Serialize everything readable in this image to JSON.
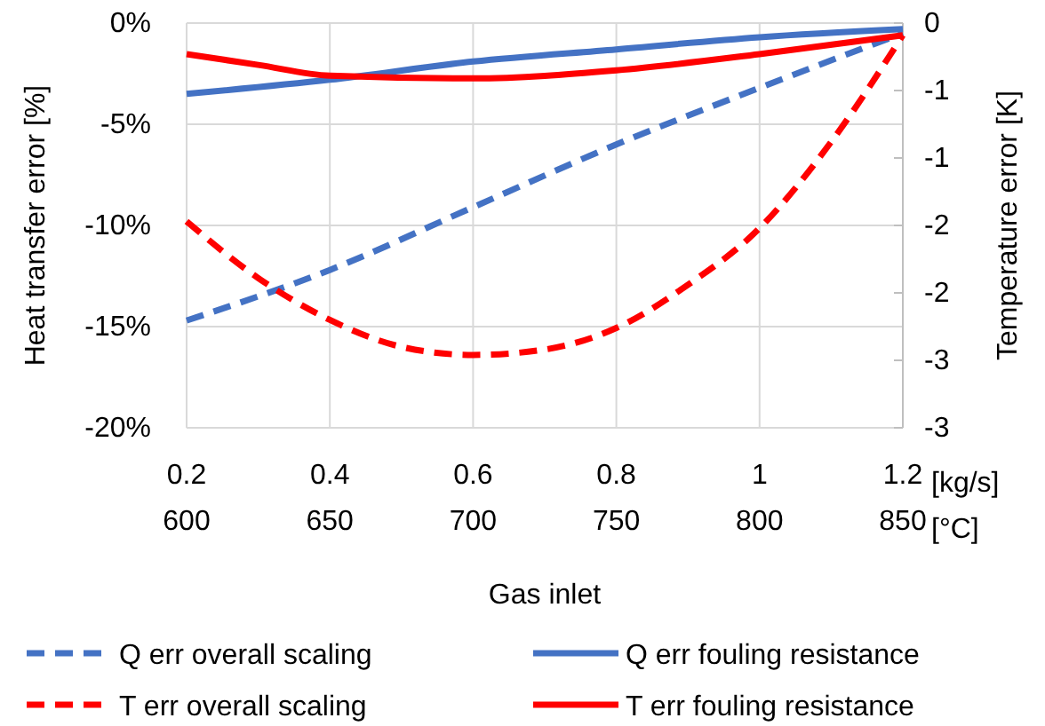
{
  "chart_data": {
    "type": "line",
    "xlabel": "Gas inlet",
    "ylabel": "Heat transfer error [%]",
    "y2label": "Temperature  error [K]",
    "annotations": [
      "[kg/s]",
      "[°C]"
    ],
    "xlim": [
      0.2,
      1.2
    ],
    "xticks": [
      0.2,
      0.4,
      0.6,
      0.8,
      1,
      1.2
    ],
    "x2lim": [
      600,
      850
    ],
    "x2ticks": [
      600,
      650,
      700,
      750,
      800,
      850
    ],
    "ylim": [
      -20,
      0
    ],
    "yticks": [
      {
        "value": 0,
        "label": "0%"
      },
      {
        "value": -5,
        "label": "-5%"
      },
      {
        "value": -10,
        "label": "-10%"
      },
      {
        "value": -15,
        "label": "-15%"
      },
      {
        "value": -20,
        "label": "-20%"
      }
    ],
    "y2lim": [
      -3,
      0
    ],
    "y2ticks": [
      0,
      {
        "value": -0.5,
        "label": "-1"
      },
      -1,
      {
        "value": -1.5,
        "label": "-2"
      },
      -2,
      {
        "value": -2.5,
        "label": "-3"
      },
      -3
    ],
    "grid": true,
    "legend": "bottom",
    "marker": "none",
    "series": [
      {
        "name": "Q err overall scaling",
        "color": "#4472c4",
        "line_style": "dashed",
        "x": [
          0.2,
          0.4,
          0.6,
          0.8,
          1.0,
          1.2
        ],
        "values": [
          -14.7,
          -12.2,
          -9.1,
          -6.0,
          -3.2,
          -0.5
        ]
      },
      {
        "name": "Q err fouling resistance",
        "color": "#4472c4",
        "line_style": "solid",
        "x": [
          0.2,
          0.4,
          0.6,
          0.8,
          1.0,
          1.2
        ],
        "values": [
          -3.5,
          -2.8,
          -1.9,
          -1.3,
          -0.7,
          -0.3
        ]
      },
      {
        "name": "T err overall scaling",
        "color": "#ff0000",
        "line_style": "dashed",
        "axis": "y2",
        "x": [
          0.2,
          0.3,
          0.4,
          0.5,
          0.6,
          0.7,
          0.8,
          0.9,
          1.0,
          1.1,
          1.2
        ],
        "values": [
          -1.47,
          -1.89,
          -2.2,
          -2.4,
          -2.46,
          -2.42,
          -2.26,
          -1.94,
          -1.52,
          -0.88,
          -0.09
        ]
      },
      {
        "name": "T err fouling resistance",
        "color": "#ff0000",
        "line_style": "solid",
        "axis": "y2",
        "x": [
          0.2,
          0.3,
          0.4,
          0.6,
          0.8,
          1.0,
          1.2
        ],
        "values": [
          -0.23,
          -0.31,
          -0.39,
          -0.41,
          -0.35,
          -0.23,
          -0.09
        ]
      }
    ]
  }
}
